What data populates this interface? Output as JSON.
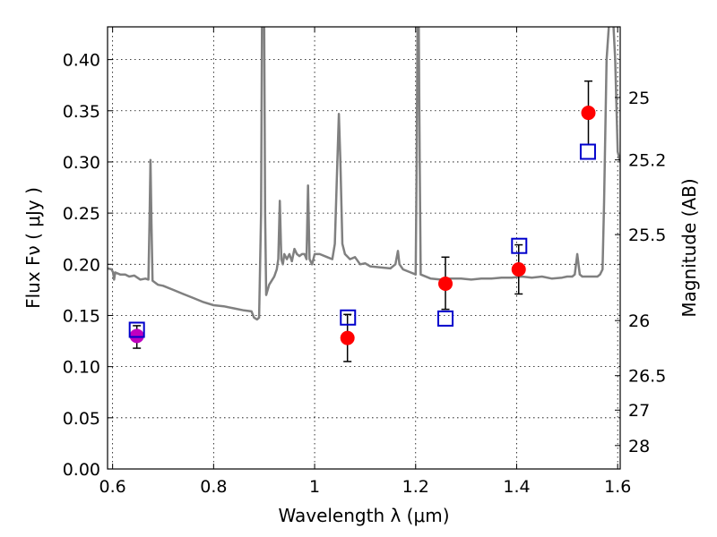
{
  "chart_data": {
    "type": "scatter",
    "title": "",
    "xlabel": "Wavelength  λ (μm)",
    "ylabel": "Flux  Fν  ( μJy )",
    "y2label": "Magnitude (AB)",
    "xlim": [
      0.59,
      1.605
    ],
    "ylim": [
      0.0,
      0.432
    ],
    "grid": true,
    "legend": "none",
    "x_ticks": [
      {
        "value": 0.6,
        "label": "0.6"
      },
      {
        "value": 0.8,
        "label": "0.8"
      },
      {
        "value": 1.0,
        "label": "1"
      },
      {
        "value": 1.2,
        "label": "1.2"
      },
      {
        "value": 1.4,
        "label": "1.4"
      },
      {
        "value": 1.6,
        "label": "1.6"
      }
    ],
    "y_ticks": [
      {
        "value": 0.0,
        "label": "0.00"
      },
      {
        "value": 0.05,
        "label": "0.05"
      },
      {
        "value": 0.1,
        "label": "0.10"
      },
      {
        "value": 0.15,
        "label": "0.15"
      },
      {
        "value": 0.2,
        "label": "0.20"
      },
      {
        "value": 0.25,
        "label": "0.25"
      },
      {
        "value": 0.3,
        "label": "0.30"
      },
      {
        "value": 0.35,
        "label": "0.35"
      },
      {
        "value": 0.4,
        "label": "0.40"
      }
    ],
    "y2_ticks": [
      {
        "flux": 0.363,
        "label": "25"
      },
      {
        "flux": 0.302,
        "label": "25.2"
      },
      {
        "flux": 0.229,
        "label": "25.5"
      },
      {
        "flux": 0.145,
        "label": "26"
      },
      {
        "flux": 0.0912,
        "label": "26.5"
      },
      {
        "flux": 0.0575,
        "label": "27"
      },
      {
        "flux": 0.0229,
        "label": "28"
      }
    ],
    "model_spectrum": {
      "color": "#808080",
      "points": [
        [
          0.59,
          0.196
        ],
        [
          0.598,
          0.195
        ],
        [
          0.601,
          0.192
        ],
        [
          0.603,
          0.185
        ],
        [
          0.605,
          0.192
        ],
        [
          0.615,
          0.19
        ],
        [
          0.625,
          0.19
        ],
        [
          0.633,
          0.188
        ],
        [
          0.643,
          0.189
        ],
        [
          0.655,
          0.185
        ],
        [
          0.665,
          0.186
        ],
        [
          0.671,
          0.185
        ],
        [
          0.673,
          0.24
        ],
        [
          0.675,
          0.302
        ],
        [
          0.677,
          0.24
        ],
        [
          0.679,
          0.184
        ],
        [
          0.69,
          0.18
        ],
        [
          0.7,
          0.179
        ],
        [
          0.72,
          0.175
        ],
        [
          0.74,
          0.171
        ],
        [
          0.76,
          0.167
        ],
        [
          0.78,
          0.163
        ],
        [
          0.8,
          0.16
        ],
        [
          0.82,
          0.159
        ],
        [
          0.84,
          0.157
        ],
        [
          0.86,
          0.155
        ],
        [
          0.875,
          0.154
        ],
        [
          0.88,
          0.148
        ],
        [
          0.886,
          0.146
        ],
        [
          0.89,
          0.148
        ],
        [
          0.894,
          0.25
        ],
        [
          0.896,
          0.45
        ],
        [
          0.9,
          0.45
        ],
        [
          0.902,
          0.25
        ],
        [
          0.904,
          0.17
        ],
        [
          0.91,
          0.18
        ],
        [
          0.92,
          0.188
        ],
        [
          0.925,
          0.195
        ],
        [
          0.928,
          0.205
        ],
        [
          0.931,
          0.262
        ],
        [
          0.934,
          0.205
        ],
        [
          0.937,
          0.2
        ],
        [
          0.94,
          0.21
        ],
        [
          0.945,
          0.205
        ],
        [
          0.95,
          0.21
        ],
        [
          0.955,
          0.203
        ],
        [
          0.96,
          0.215
        ],
        [
          0.965,
          0.21
        ],
        [
          0.97,
          0.208
        ],
        [
          0.975,
          0.21
        ],
        [
          0.98,
          0.21
        ],
        [
          0.984,
          0.205
        ],
        [
          0.987,
          0.277
        ],
        [
          0.99,
          0.205
        ],
        [
          0.995,
          0.2
        ],
        [
          1.0,
          0.21
        ],
        [
          1.01,
          0.21
        ],
        [
          1.025,
          0.207
        ],
        [
          1.035,
          0.205
        ],
        [
          1.04,
          0.22
        ],
        [
          1.045,
          0.3
        ],
        [
          1.048,
          0.347
        ],
        [
          1.051,
          0.3
        ],
        [
          1.055,
          0.22
        ],
        [
          1.06,
          0.21
        ],
        [
          1.07,
          0.205
        ],
        [
          1.08,
          0.207
        ],
        [
          1.09,
          0.2
        ],
        [
          1.1,
          0.201
        ],
        [
          1.11,
          0.198
        ],
        [
          1.13,
          0.197
        ],
        [
          1.15,
          0.196
        ],
        [
          1.16,
          0.2
        ],
        [
          1.165,
          0.213
        ],
        [
          1.168,
          0.2
        ],
        [
          1.175,
          0.195
        ],
        [
          1.19,
          0.192
        ],
        [
          1.2,
          0.19
        ],
        [
          1.202,
          0.3
        ],
        [
          1.204,
          0.45
        ],
        [
          1.206,
          0.45
        ],
        [
          1.208,
          0.3
        ],
        [
          1.21,
          0.19
        ],
        [
          1.23,
          0.186
        ],
        [
          1.25,
          0.185
        ],
        [
          1.27,
          0.186
        ],
        [
          1.29,
          0.186
        ],
        [
          1.31,
          0.185
        ],
        [
          1.33,
          0.186
        ],
        [
          1.35,
          0.186
        ],
        [
          1.37,
          0.187
        ],
        [
          1.39,
          0.187
        ],
        [
          1.41,
          0.188
        ],
        [
          1.43,
          0.187
        ],
        [
          1.45,
          0.188
        ],
        [
          1.47,
          0.186
        ],
        [
          1.49,
          0.187
        ],
        [
          1.5,
          0.188
        ],
        [
          1.51,
          0.188
        ],
        [
          1.515,
          0.19
        ],
        [
          1.52,
          0.21
        ],
        [
          1.525,
          0.19
        ],
        [
          1.53,
          0.188
        ],
        [
          1.56,
          0.188
        ],
        [
          1.565,
          0.19
        ],
        [
          1.57,
          0.195
        ],
        [
          1.573,
          0.26
        ],
        [
          1.578,
          0.4
        ],
        [
          1.585,
          0.45
        ],
        [
          1.59,
          0.45
        ],
        [
          1.595,
          0.4
        ],
        [
          1.6,
          0.31
        ],
        [
          1.605,
          0.3
        ]
      ]
    },
    "series": [
      {
        "marker": "circle",
        "color": "#ff0000",
        "points": [
          {
            "x": 1.065,
            "y": 0.128,
            "yerr_low": 0.105,
            "yerr_high": 0.151
          },
          {
            "x": 1.259,
            "y": 0.181,
            "yerr_low": 0.156,
            "yerr_high": 0.207
          },
          {
            "x": 1.404,
            "y": 0.195,
            "yerr_low": 0.171,
            "yerr_high": 0.219
          },
          {
            "x": 1.542,
            "y": 0.348,
            "yerr_low": 0.317,
            "yerr_high": 0.379
          }
        ]
      },
      {
        "marker": "circle",
        "color": "#bf00bf",
        "points": [
          {
            "x": 0.648,
            "y": 0.13,
            "yerr_low": 0.118,
            "yerr_high": 0.14
          }
        ]
      },
      {
        "marker": "open-square",
        "color": "#0000cc",
        "points": [
          {
            "x": 0.648,
            "y": 0.136
          },
          {
            "x": 1.066,
            "y": 0.148
          },
          {
            "x": 1.259,
            "y": 0.147
          },
          {
            "x": 1.405,
            "y": 0.218
          },
          {
            "x": 1.541,
            "y": 0.31
          }
        ]
      }
    ]
  }
}
